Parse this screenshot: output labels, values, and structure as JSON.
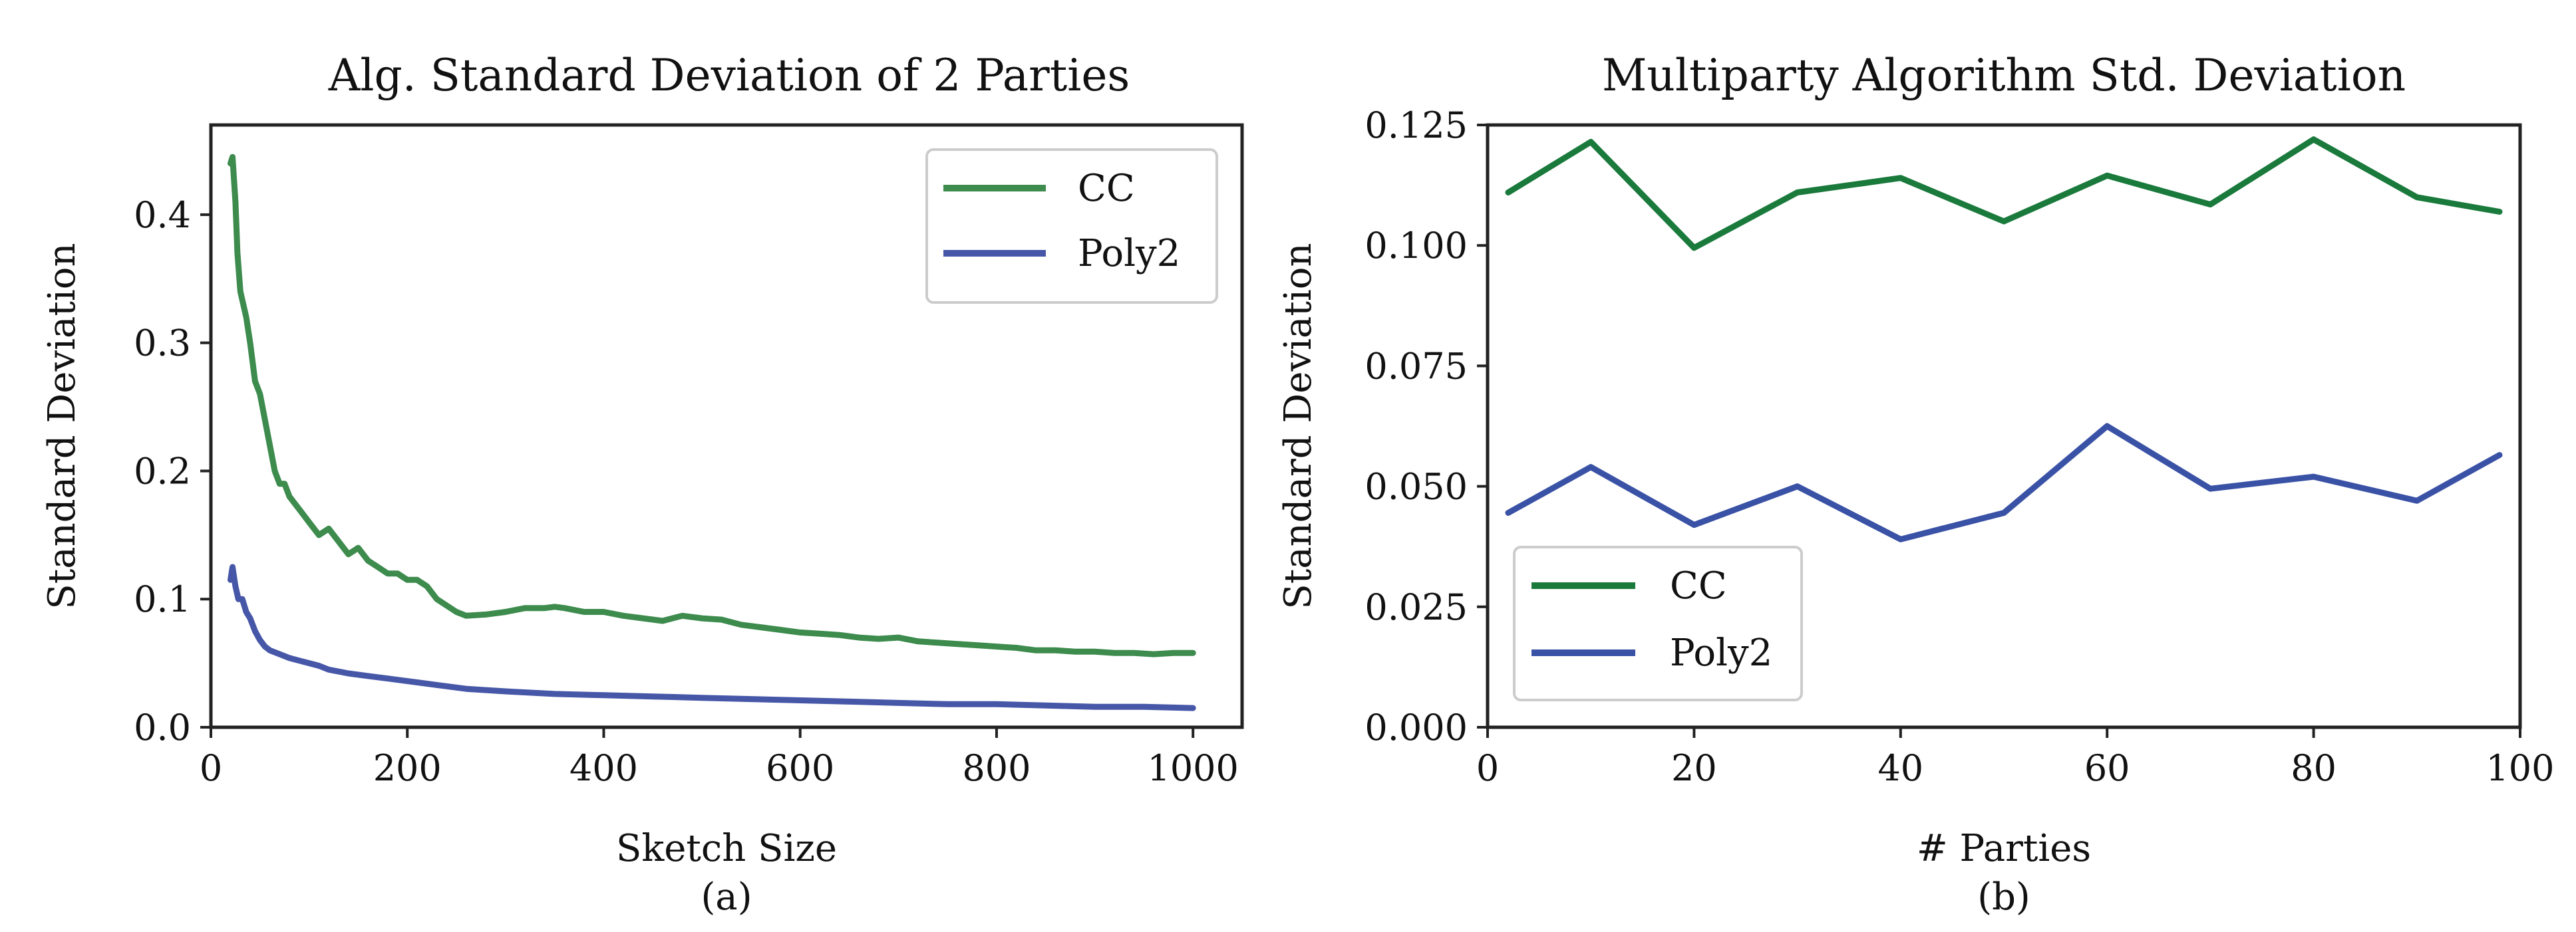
{
  "chart_data": [
    {
      "type": "line",
      "title": "Alg. Standard Deviation of 2 Parties",
      "xlabel": "Sketch Size",
      "ylabel": "Standard Deviation",
      "sublabel": "(a)",
      "xlim": [
        0,
        1050
      ],
      "ylim": [
        0,
        0.47
      ],
      "xticks": [
        0,
        200,
        400,
        600,
        800,
        1000
      ],
      "xtick_labels": [
        "0",
        "200",
        "400",
        "600",
        "800",
        "1000"
      ],
      "yticks": [
        0.0,
        0.1,
        0.2,
        0.3,
        0.4
      ],
      "ytick_labels": [
        "0.0",
        "0.1",
        "0.2",
        "0.3",
        "0.4"
      ],
      "legend": {
        "position": "upper right",
        "entries": [
          "CC",
          "Poly2"
        ]
      },
      "series": [
        {
          "name": "CC",
          "color": "#3d8b4d",
          "x": [
            20,
            22,
            25,
            27,
            30,
            33,
            36,
            40,
            45,
            50,
            55,
            60,
            65,
            70,
            75,
            80,
            90,
            100,
            110,
            120,
            130,
            140,
            150,
            160,
            170,
            180,
            190,
            200,
            210,
            220,
            230,
            240,
            250,
            260,
            280,
            300,
            320,
            340,
            350,
            360,
            380,
            400,
            420,
            440,
            460,
            470,
            480,
            500,
            520,
            540,
            560,
            580,
            600,
            620,
            640,
            660,
            680,
            700,
            720,
            740,
            760,
            780,
            800,
            820,
            840,
            860,
            880,
            900,
            920,
            940,
            960,
            980,
            1000
          ],
          "y": [
            0.44,
            0.445,
            0.41,
            0.37,
            0.34,
            0.33,
            0.32,
            0.3,
            0.27,
            0.26,
            0.24,
            0.22,
            0.2,
            0.19,
            0.19,
            0.18,
            0.17,
            0.16,
            0.15,
            0.155,
            0.145,
            0.135,
            0.14,
            0.13,
            0.125,
            0.12,
            0.12,
            0.115,
            0.115,
            0.11,
            0.1,
            0.095,
            0.09,
            0.087,
            0.088,
            0.09,
            0.093,
            0.093,
            0.094,
            0.093,
            0.09,
            0.09,
            0.087,
            0.085,
            0.083,
            0.085,
            0.087,
            0.085,
            0.084,
            0.08,
            0.078,
            0.076,
            0.074,
            0.073,
            0.072,
            0.07,
            0.069,
            0.07,
            0.067,
            0.066,
            0.065,
            0.064,
            0.063,
            0.062,
            0.06,
            0.06,
            0.059,
            0.059,
            0.058,
            0.058,
            0.057,
            0.058,
            0.058
          ]
        },
        {
          "name": "Poly2",
          "color": "#4657a8",
          "x": [
            20,
            22,
            25,
            28,
            32,
            36,
            40,
            45,
            50,
            55,
            60,
            70,
            80,
            90,
            100,
            110,
            120,
            140,
            160,
            180,
            200,
            230,
            260,
            300,
            350,
            400,
            450,
            500,
            550,
            600,
            650,
            700,
            750,
            800,
            850,
            900,
            950,
            1000
          ],
          "y": [
            0.115,
            0.125,
            0.11,
            0.1,
            0.1,
            0.09,
            0.085,
            0.075,
            0.068,
            0.063,
            0.06,
            0.057,
            0.054,
            0.052,
            0.05,
            0.048,
            0.045,
            0.042,
            0.04,
            0.038,
            0.036,
            0.033,
            0.03,
            0.028,
            0.026,
            0.025,
            0.024,
            0.023,
            0.022,
            0.021,
            0.02,
            0.019,
            0.018,
            0.018,
            0.017,
            0.016,
            0.016,
            0.015
          ]
        }
      ]
    },
    {
      "type": "line",
      "title": "Multiparty Algorithm Std. Deviation",
      "xlabel": "# Parties",
      "ylabel": "Standard Deviation",
      "sublabel": "(b)",
      "xlim": [
        0,
        100
      ],
      "ylim": [
        0,
        0.125
      ],
      "xticks": [
        0,
        20,
        40,
        60,
        80,
        100
      ],
      "xtick_labels": [
        "0",
        "20",
        "40",
        "60",
        "80",
        "100"
      ],
      "yticks": [
        0.0,
        0.025,
        0.05,
        0.075,
        0.1,
        0.125
      ],
      "ytick_labels": [
        "0.000",
        "0.025",
        "0.050",
        "0.075",
        "0.100",
        "0.125"
      ],
      "legend": {
        "position": "lower left",
        "entries": [
          "CC",
          "Poly2"
        ]
      },
      "series": [
        {
          "name": "CC",
          "color": "#1a7a3c",
          "x": [
            2,
            10,
            20,
            30,
            40,
            50,
            60,
            70,
            80,
            90,
            98
          ],
          "y": [
            0.111,
            0.1215,
            0.0995,
            0.111,
            0.114,
            0.105,
            0.1145,
            0.1085,
            0.122,
            0.11,
            0.107
          ]
        },
        {
          "name": "Poly2",
          "color": "#3a52a6",
          "x": [
            2,
            10,
            20,
            30,
            40,
            50,
            60,
            70,
            80,
            90,
            98
          ],
          "y": [
            0.0445,
            0.054,
            0.042,
            0.05,
            0.039,
            0.0445,
            0.0625,
            0.0495,
            0.052,
            0.047,
            0.0565
          ]
        }
      ]
    }
  ]
}
